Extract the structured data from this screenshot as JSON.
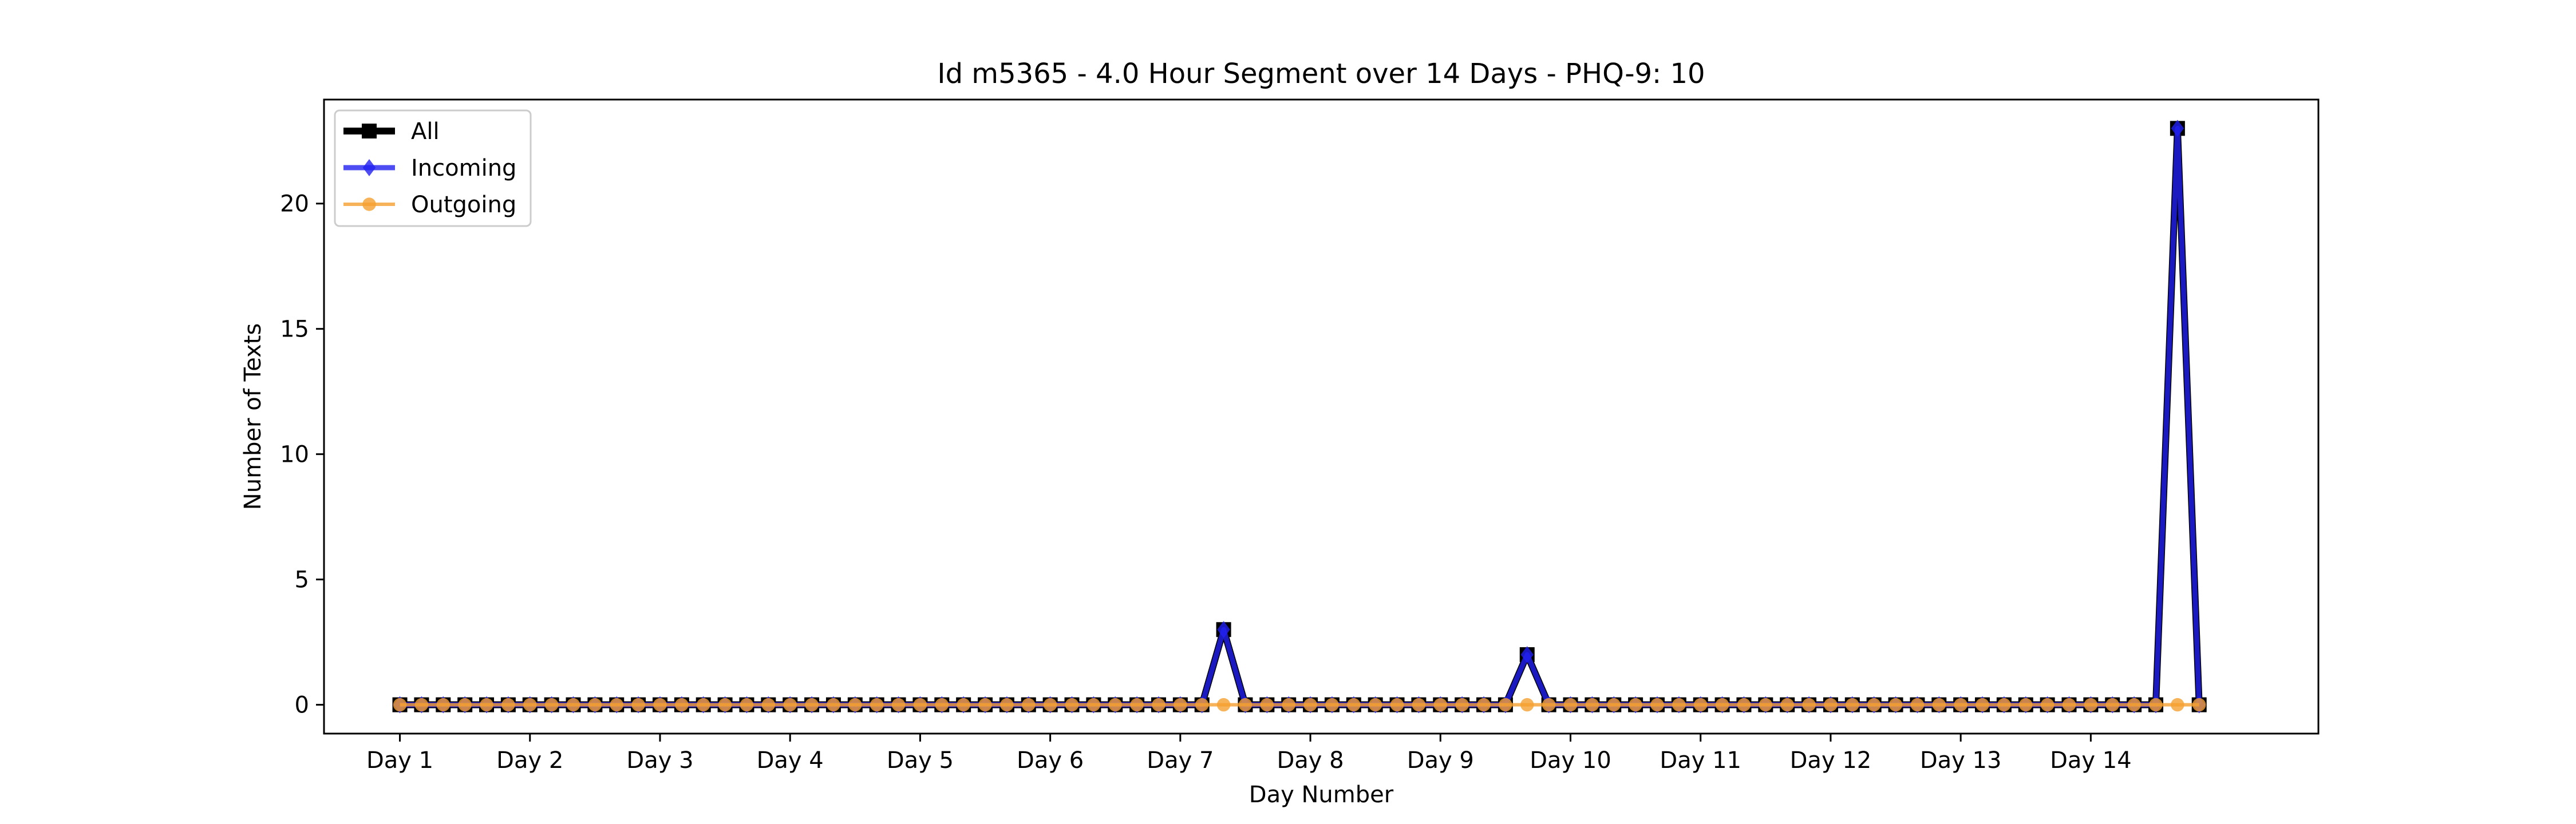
{
  "chart_data": {
    "type": "line",
    "title": "Id m5365 - 4.0 Hour Segment over 14 Days - PHQ-9: 10",
    "xlabel": "Day Number",
    "ylabel": "Number of Texts",
    "ylim": [
      -1.15,
      24.15
    ],
    "xlim": [
      -3.5,
      88.5
    ],
    "yticks": [
      0,
      5,
      10,
      15,
      20
    ],
    "xticks": [
      {
        "pos": 0,
        "label": "Day 1"
      },
      {
        "pos": 6,
        "label": "Day 2"
      },
      {
        "pos": 12,
        "label": "Day 3"
      },
      {
        "pos": 18,
        "label": "Day 4"
      },
      {
        "pos": 24,
        "label": "Day 5"
      },
      {
        "pos": 30,
        "label": "Day 6"
      },
      {
        "pos": 36,
        "label": "Day 7"
      },
      {
        "pos": 42,
        "label": "Day 8"
      },
      {
        "pos": 48,
        "label": "Day 9"
      },
      {
        "pos": 54,
        "label": "Day 10"
      },
      {
        "pos": 60,
        "label": "Day 11"
      },
      {
        "pos": 66,
        "label": "Day 12"
      },
      {
        "pos": 72,
        "label": "Day 13"
      },
      {
        "pos": 78,
        "label": "Day 14"
      }
    ],
    "legend_position": "upper-left",
    "segment_count": 84,
    "spikes": {
      "All": [
        {
          "index": 38,
          "value": 3
        },
        {
          "index": 52,
          "value": 2
        },
        {
          "index": 82,
          "value": 23
        }
      ],
      "Incoming": [
        {
          "index": 38,
          "value": 3
        },
        {
          "index": 52,
          "value": 2
        },
        {
          "index": 82,
          "value": 23
        }
      ],
      "Outgoing": []
    },
    "series": [
      {
        "name": "All",
        "color": "#000000",
        "marker": "square"
      },
      {
        "name": "Incoming",
        "color": "#2020f0",
        "marker": "diamond"
      },
      {
        "name": "Outgoing",
        "color": "#f5a030",
        "marker": "circle"
      }
    ]
  }
}
